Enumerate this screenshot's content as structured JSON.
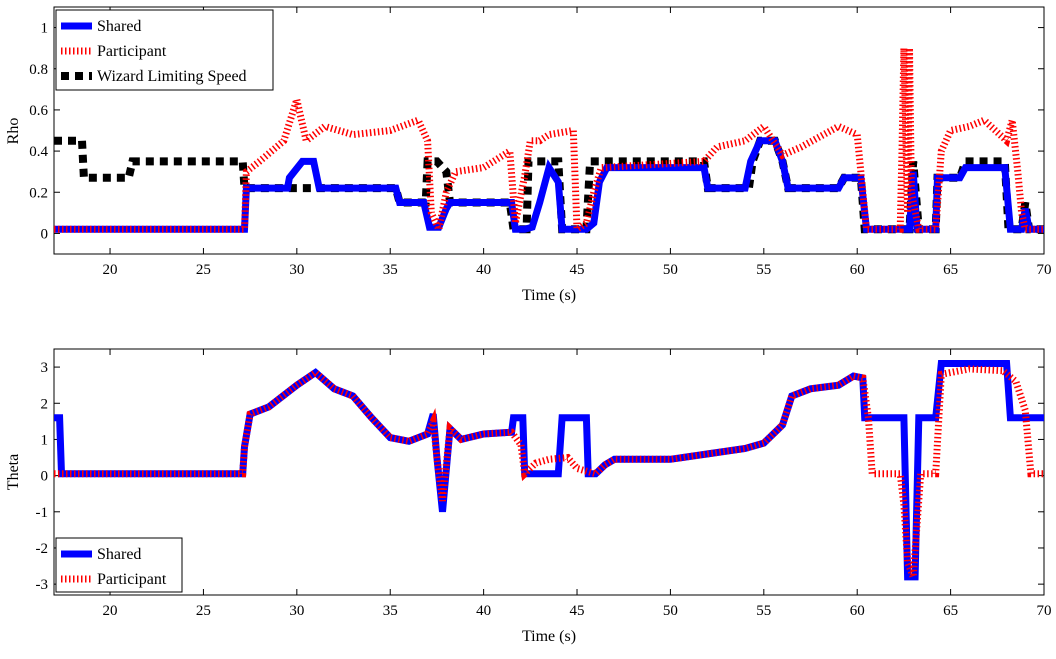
{
  "chart_data": [
    {
      "type": "line",
      "xlabel": "Time (s)",
      "ylabel": "Rho",
      "xlim": [
        17,
        70
      ],
      "ylim": [
        -0.1,
        1.1
      ],
      "xticks": [
        20,
        25,
        30,
        35,
        40,
        45,
        50,
        55,
        60,
        65,
        70
      ],
      "yticks": [
        0,
        0.2,
        0.4,
        0.6,
        0.8,
        1
      ],
      "yticklabels": [
        "0",
        "0.2",
        "0.4",
        "0.6",
        "0.8",
        "1"
      ],
      "legend_position": "top-left",
      "series": [
        {
          "name": "Shared",
          "color": "#0000ff",
          "style": "solid",
          "points": [
            [
              17,
              0.02
            ],
            [
              27.2,
              0.02
            ],
            [
              27.3,
              0.22
            ],
            [
              29.5,
              0.22
            ],
            [
              29.6,
              0.27
            ],
            [
              30.3,
              0.35
            ],
            [
              30.9,
              0.35
            ],
            [
              31.2,
              0.22
            ],
            [
              35.3,
              0.22
            ],
            [
              35.5,
              0.15
            ],
            [
              36.8,
              0.15
            ],
            [
              37.1,
              0.03
            ],
            [
              37.6,
              0.03
            ],
            [
              38,
              0.12
            ],
            [
              38.2,
              0.15
            ],
            [
              41.5,
              0.15
            ],
            [
              41.7,
              0.02
            ],
            [
              42.2,
              0.02
            ],
            [
              42.6,
              0.03
            ],
            [
              43,
              0.15
            ],
            [
              43.5,
              0.32
            ],
            [
              44,
              0.25
            ],
            [
              44.2,
              0.02
            ],
            [
              45.5,
              0.02
            ],
            [
              45.9,
              0.05
            ],
            [
              46.2,
              0.25
            ],
            [
              46.6,
              0.32
            ],
            [
              51.8,
              0.32
            ],
            [
              52,
              0.22
            ],
            [
              54,
              0.22
            ],
            [
              54.3,
              0.35
            ],
            [
              54.8,
              0.45
            ],
            [
              55.6,
              0.45
            ],
            [
              56,
              0.35
            ],
            [
              56.3,
              0.22
            ],
            [
              59,
              0.22
            ],
            [
              59.3,
              0.27
            ],
            [
              60.2,
              0.27
            ],
            [
              60.5,
              0.02
            ],
            [
              62.8,
              0.02
            ],
            [
              63,
              0.3
            ],
            [
              63.2,
              0.02
            ],
            [
              64.2,
              0.02
            ],
            [
              64.3,
              0.27
            ],
            [
              65.5,
              0.27
            ],
            [
              65.8,
              0.32
            ],
            [
              67.9,
              0.32
            ],
            [
              68.2,
              0.02
            ],
            [
              68.8,
              0.02
            ],
            [
              69,
              0.12
            ],
            [
              69.2,
              0.02
            ],
            [
              70,
              0.02
            ]
          ]
        },
        {
          "name": "Participant",
          "color": "#ff0000",
          "style": "dotted",
          "points": [
            [
              17,
              0.02
            ],
            [
              27.2,
              0.02
            ],
            [
              27.3,
              0.3
            ],
            [
              28,
              0.35
            ],
            [
              29.3,
              0.45
            ],
            [
              30,
              0.65
            ],
            [
              30.5,
              0.45
            ],
            [
              31.5,
              0.52
            ],
            [
              33,
              0.48
            ],
            [
              35,
              0.5
            ],
            [
              36.5,
              0.55
            ],
            [
              37,
              0.45
            ],
            [
              37.2,
              0.1
            ],
            [
              37.6,
              0.02
            ],
            [
              38,
              0.2
            ],
            [
              38.5,
              0.3
            ],
            [
              40,
              0.32
            ],
            [
              41.4,
              0.4
            ],
            [
              41.7,
              0.05
            ],
            [
              42.2,
              0.28
            ],
            [
              42.5,
              0.45
            ],
            [
              43,
              0.45
            ],
            [
              43.5,
              0.48
            ],
            [
              44.8,
              0.5
            ],
            [
              45,
              0.02
            ],
            [
              45.5,
              0.05
            ],
            [
              45.9,
              0.2
            ],
            [
              46.3,
              0.32
            ],
            [
              51.8,
              0.35
            ],
            [
              52.5,
              0.42
            ],
            [
              54,
              0.45
            ],
            [
              55,
              0.52
            ],
            [
              56,
              0.38
            ],
            [
              57,
              0.42
            ],
            [
              59,
              0.52
            ],
            [
              60,
              0.48
            ],
            [
              60.5,
              0.02
            ],
            [
              62.3,
              0.02
            ],
            [
              62.4,
              0.4
            ],
            [
              62.5,
              0.9
            ],
            [
              62.7,
              0.1
            ],
            [
              62.8,
              0.9
            ],
            [
              62.9,
              0.2
            ],
            [
              63.3,
              0.02
            ],
            [
              64.2,
              0.02
            ],
            [
              64.5,
              0.4
            ],
            [
              65,
              0.5
            ],
            [
              66,
              0.52
            ],
            [
              66.8,
              0.55
            ],
            [
              68,
              0.45
            ],
            [
              68.3,
              0.55
            ],
            [
              68.6,
              0.3
            ],
            [
              68.8,
              0.1
            ],
            [
              69,
              0.02
            ],
            [
              70,
              0.02
            ]
          ]
        },
        {
          "name": "Wizard Limiting Speed",
          "color": "#000000",
          "style": "dashed",
          "points": [
            [
              17,
              0.45
            ],
            [
              18.5,
              0.45
            ],
            [
              18.6,
              0.27
            ],
            [
              21,
              0.27
            ],
            [
              21.2,
              0.35
            ],
            [
              27.1,
              0.35
            ],
            [
              27.2,
              0.22
            ],
            [
              35.3,
              0.22
            ],
            [
              35.5,
              0.15
            ],
            [
              36.9,
              0.15
            ],
            [
              37,
              0.35
            ],
            [
              37.5,
              0.35
            ],
            [
              38,
              0.3
            ],
            [
              38.2,
              0.15
            ],
            [
              41.4,
              0.15
            ],
            [
              41.6,
              0.02
            ],
            [
              42.3,
              0.02
            ],
            [
              42.4,
              0.35
            ],
            [
              44,
              0.35
            ],
            [
              44.2,
              0.02
            ],
            [
              45.5,
              0.02
            ],
            [
              45.7,
              0.35
            ],
            [
              51.8,
              0.35
            ],
            [
              52,
              0.22
            ],
            [
              54.2,
              0.22
            ],
            [
              54.4,
              0.35
            ],
            [
              54.8,
              0.45
            ],
            [
              55.6,
              0.45
            ],
            [
              56,
              0.35
            ],
            [
              56.3,
              0.22
            ],
            [
              59,
              0.22
            ],
            [
              59.3,
              0.27
            ],
            [
              60.2,
              0.27
            ],
            [
              60.4,
              0.02
            ],
            [
              62.8,
              0.02
            ],
            [
              63,
              0.35
            ],
            [
              63.3,
              0.02
            ],
            [
              64.2,
              0.02
            ],
            [
              64.3,
              0.27
            ],
            [
              65.5,
              0.27
            ],
            [
              65.8,
              0.35
            ],
            [
              67.9,
              0.35
            ],
            [
              68.1,
              0.02
            ],
            [
              68.8,
              0.02
            ],
            [
              69,
              0.15
            ],
            [
              69.2,
              0.02
            ],
            [
              70,
              0.02
            ]
          ]
        }
      ]
    },
    {
      "type": "line",
      "xlabel": "Time (s)",
      "ylabel": "Theta",
      "xlim": [
        17,
        70
      ],
      "ylim": [
        -3.3,
        3.5
      ],
      "xticks": [
        20,
        25,
        30,
        35,
        40,
        45,
        50,
        55,
        60,
        65,
        70
      ],
      "yticks": [
        -3,
        -2,
        -1,
        0,
        1,
        2,
        3
      ],
      "yticklabels": [
        "-3",
        "-2",
        "-1",
        "0",
        "1",
        "2",
        "3"
      ],
      "legend_position": "bottom-left",
      "series": [
        {
          "name": "Shared",
          "color": "#0000ff",
          "style": "solid",
          "points": [
            [
              17,
              1.6
            ],
            [
              17.3,
              1.6
            ],
            [
              17.4,
              0.05
            ],
            [
              27.1,
              0.05
            ],
            [
              27.2,
              0.8
            ],
            [
              27.5,
              1.7
            ],
            [
              28.5,
              1.9
            ],
            [
              30,
              2.5
            ],
            [
              31,
              2.85
            ],
            [
              32,
              2.4
            ],
            [
              33,
              2.2
            ],
            [
              34,
              1.6
            ],
            [
              35,
              1.05
            ],
            [
              36,
              0.95
            ],
            [
              37,
              1.15
            ],
            [
              37.3,
              1.7
            ],
            [
              37.5,
              0.5
            ],
            [
              37.8,
              -1.0
            ],
            [
              38.2,
              1.3
            ],
            [
              38.8,
              1.0
            ],
            [
              40,
              1.15
            ],
            [
              41.5,
              1.2
            ],
            [
              41.6,
              1.6
            ],
            [
              42.1,
              1.6
            ],
            [
              42.2,
              0.05
            ],
            [
              44,
              0.05
            ],
            [
              44.2,
              1.6
            ],
            [
              45.5,
              1.6
            ],
            [
              45.6,
              0.05
            ],
            [
              46,
              0.05
            ],
            [
              46.5,
              0.3
            ],
            [
              47,
              0.45
            ],
            [
              50,
              0.45
            ],
            [
              52,
              0.6
            ],
            [
              54,
              0.75
            ],
            [
              55,
              0.9
            ],
            [
              56,
              1.4
            ],
            [
              56.5,
              2.2
            ],
            [
              57.5,
              2.4
            ],
            [
              59,
              2.5
            ],
            [
              59.8,
              2.75
            ],
            [
              60.3,
              2.7
            ],
            [
              60.4,
              1.6
            ],
            [
              62.5,
              1.6
            ],
            [
              62.7,
              -2.8
            ],
            [
              63.1,
              -2.8
            ],
            [
              63.3,
              1.6
            ],
            [
              64.2,
              1.6
            ],
            [
              64.5,
              3.1
            ],
            [
              68,
              3.1
            ],
            [
              68.2,
              1.6
            ],
            [
              70,
              1.6
            ]
          ]
        },
        {
          "name": "Participant",
          "color": "#ff0000",
          "style": "dotted",
          "points": [
            [
              17,
              0.05
            ],
            [
              27.1,
              0.05
            ],
            [
              27.2,
              0.8
            ],
            [
              27.5,
              1.7
            ],
            [
              28.5,
              1.9
            ],
            [
              30,
              2.5
            ],
            [
              31,
              2.85
            ],
            [
              32,
              2.4
            ],
            [
              33,
              2.2
            ],
            [
              34,
              1.6
            ],
            [
              35,
              1.05
            ],
            [
              36,
              0.95
            ],
            [
              37,
              1.15
            ],
            [
              37.3,
              1.5
            ],
            [
              37.5,
              0.5
            ],
            [
              37.8,
              -0.7
            ],
            [
              38.2,
              1.3
            ],
            [
              38.8,
              1.0
            ],
            [
              40,
              1.15
            ],
            [
              41.5,
              1.2
            ],
            [
              42,
              0.85
            ],
            [
              42.2,
              0.05
            ],
            [
              42.8,
              0.35
            ],
            [
              43.5,
              0.45
            ],
            [
              44.5,
              0.5
            ],
            [
              45,
              0.2
            ],
            [
              46,
              0.05
            ],
            [
              46.5,
              0.3
            ],
            [
              47,
              0.45
            ],
            [
              50,
              0.45
            ],
            [
              52,
              0.6
            ],
            [
              54,
              0.75
            ],
            [
              55,
              0.9
            ],
            [
              56,
              1.4
            ],
            [
              56.5,
              2.2
            ],
            [
              57.5,
              2.4
            ],
            [
              59,
              2.5
            ],
            [
              59.8,
              2.75
            ],
            [
              60.3,
              2.7
            ],
            [
              60.6,
              1.6
            ],
            [
              60.8,
              0.05
            ],
            [
              62.3,
              0.05
            ],
            [
              62.5,
              -0.8
            ],
            [
              62.7,
              -2.4
            ],
            [
              63,
              -2.8
            ],
            [
              63.4,
              0.05
            ],
            [
              64.2,
              0.05
            ],
            [
              64.5,
              2.8
            ],
            [
              66,
              2.95
            ],
            [
              67.8,
              2.9
            ],
            [
              68.5,
              2.6
            ],
            [
              69,
              1.8
            ],
            [
              69.3,
              0.05
            ],
            [
              70,
              0.05
            ]
          ]
        }
      ]
    }
  ]
}
